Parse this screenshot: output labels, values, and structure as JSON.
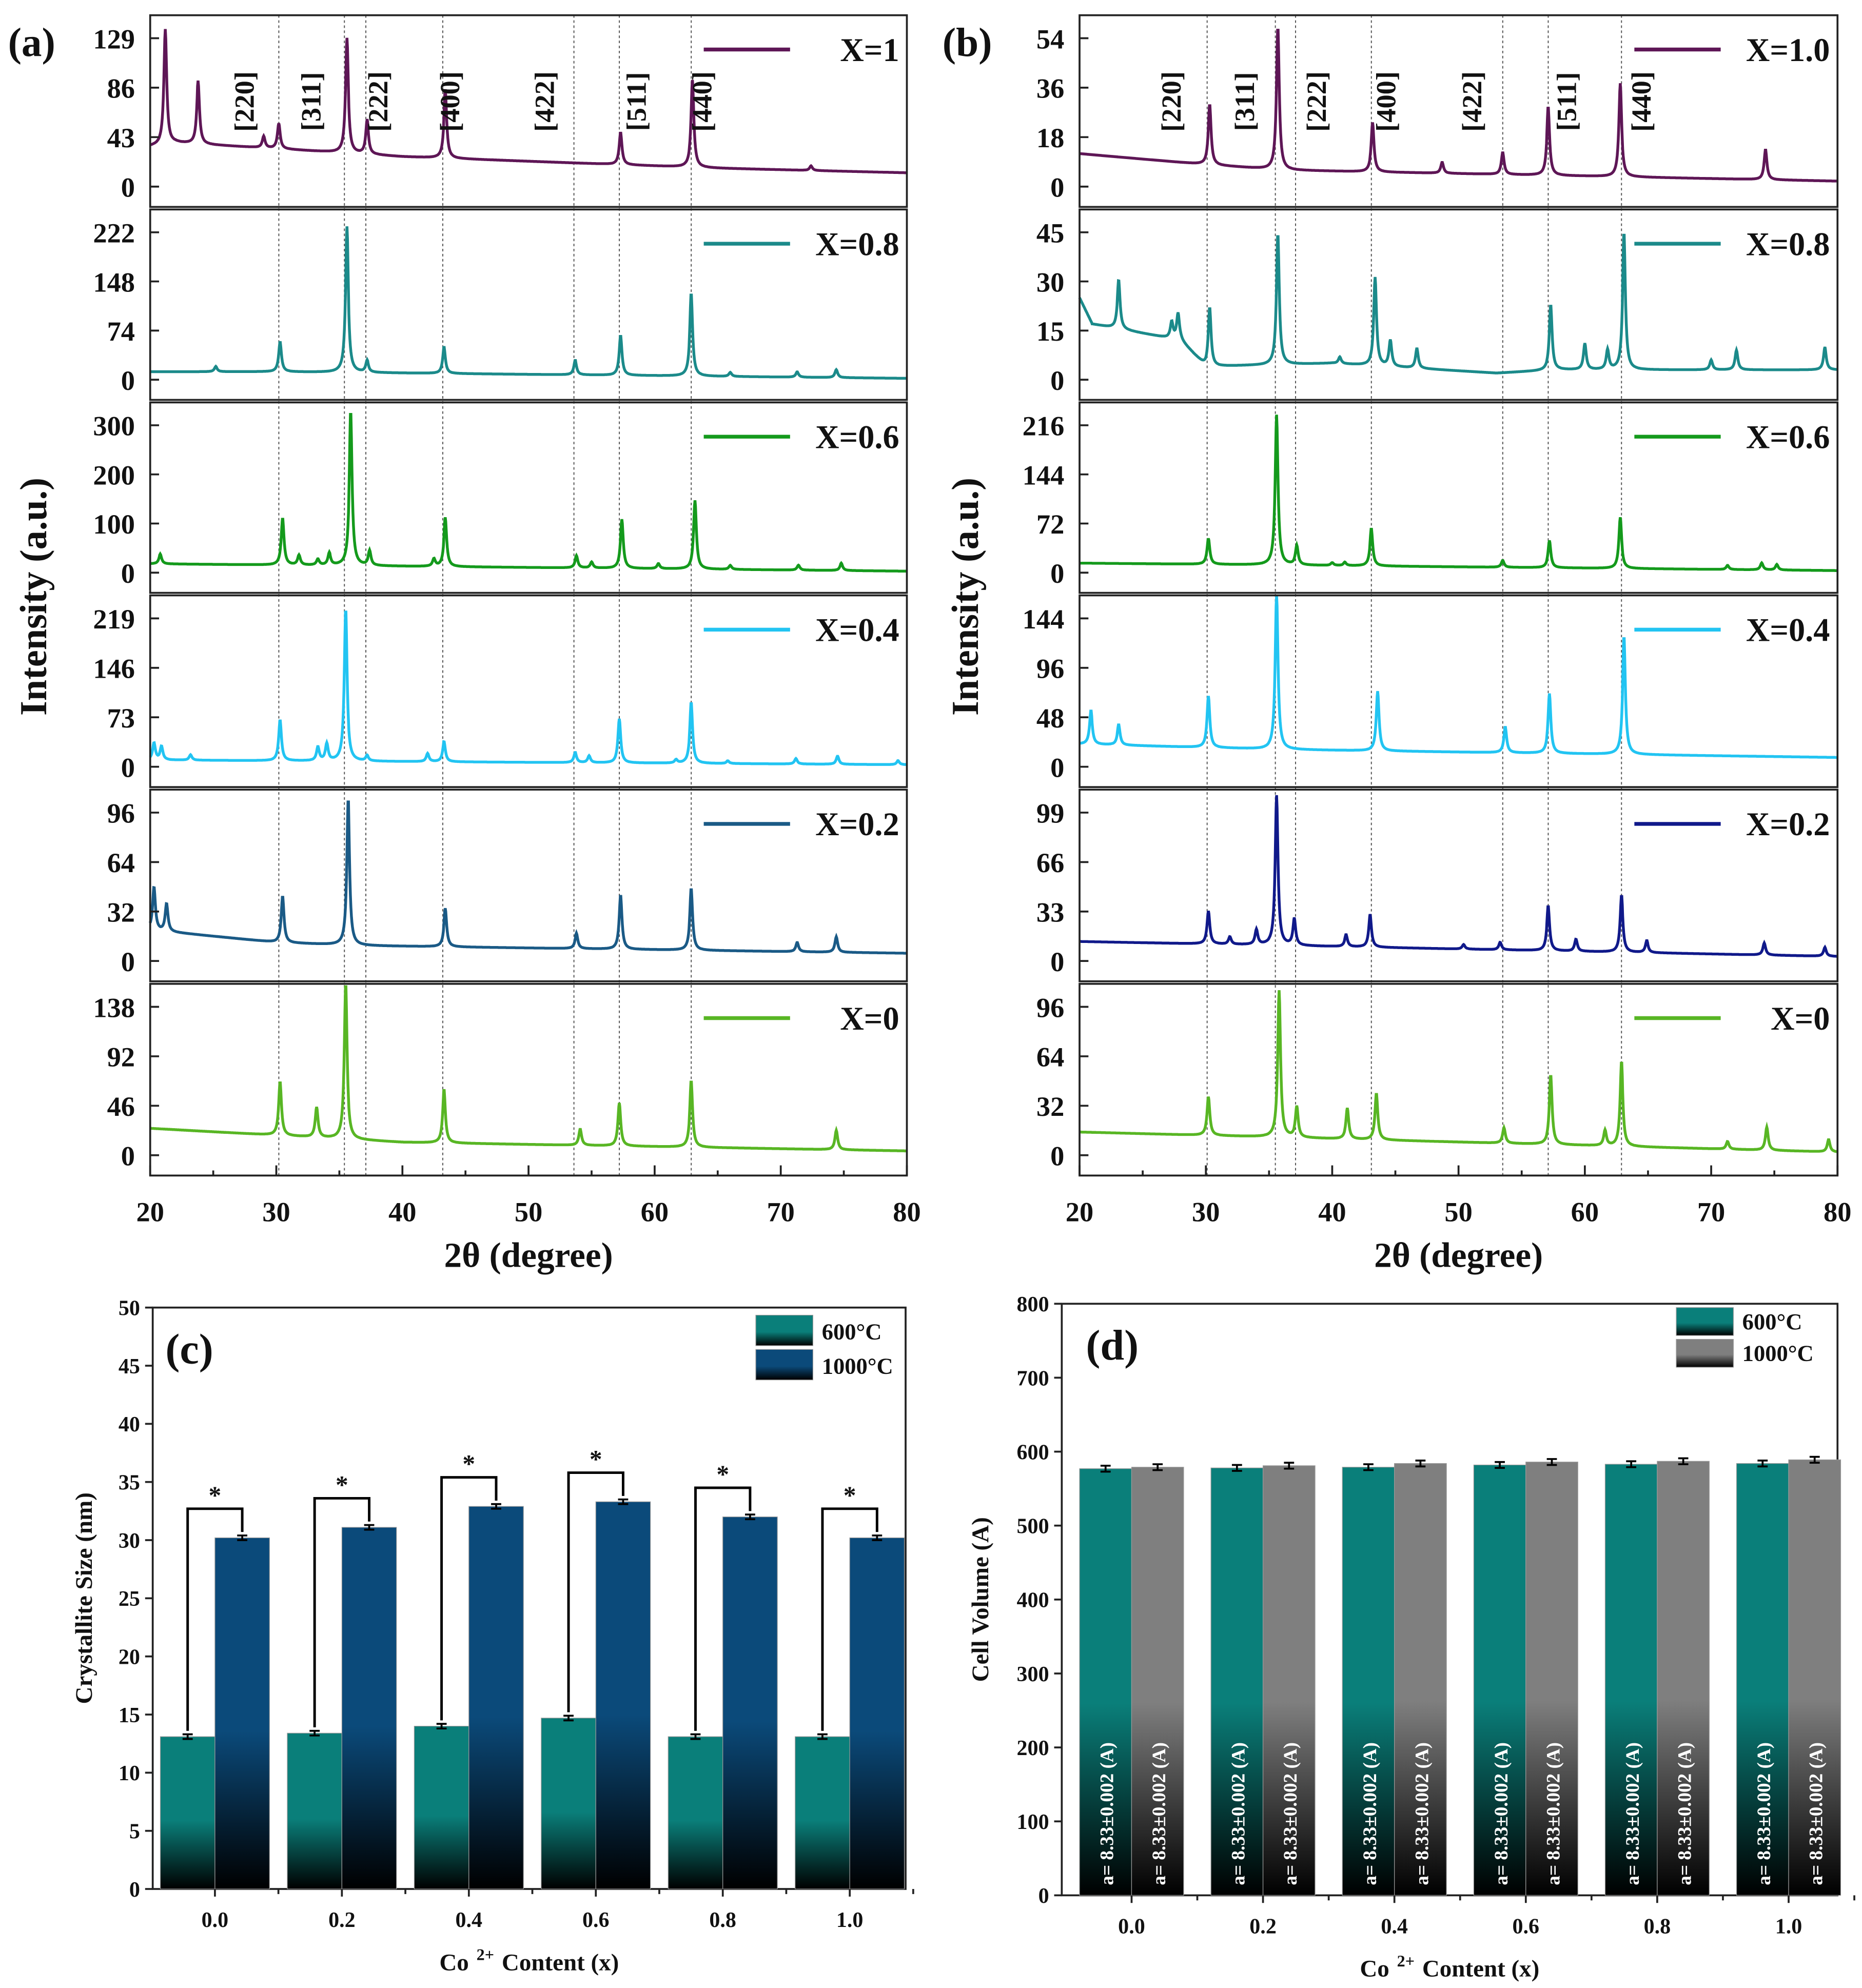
{
  "chart_data": [
    {
      "panel": "(a)",
      "type": "line",
      "xlabel": "2θ (degree)",
      "ylabel": "Intensity (a.u.)",
      "xlim": [
        20,
        80
      ],
      "xticks": [
        "20",
        "30",
        "40",
        "50",
        "60",
        "70",
        "80"
      ],
      "reference_lines": [
        30.2,
        35.4,
        37.1,
        43.2,
        53.6,
        57.2,
        62.9
      ],
      "miller_labels": [
        {
          "text": "[220]",
          "at": 28.2
        },
        {
          "text": "[311]",
          "at": 33.5
        },
        {
          "text": "[222]",
          "at": 38.8
        },
        {
          "text": "[400]",
          "at": 44.5
        },
        {
          "text": "[422]",
          "at": 52.0
        },
        {
          "text": "[511]",
          "at": 59.3
        },
        {
          "text": "[440]",
          "at": 64.5
        }
      ],
      "series": [
        {
          "name": "X=1",
          "color": "#5e1656",
          "yticks": [
            "0",
            "43",
            "86",
            "129"
          ],
          "ymax_tick": 129,
          "baseline": [
            [
              20,
              35
            ],
            [
              22,
              38
            ],
            [
              30,
              33
            ],
            [
              40,
              26
            ],
            [
              55,
              20
            ],
            [
              65,
              16
            ],
            [
              80,
              12
            ]
          ],
          "peaks": [
            [
              21.2,
              100
            ],
            [
              23.8,
              55
            ],
            [
              29,
              10
            ],
            [
              30.2,
              22
            ],
            [
              35.6,
              100
            ],
            [
              37.2,
              30
            ],
            [
              43.4,
              60
            ],
            [
              57.3,
              28
            ],
            [
              63,
              76
            ],
            [
              72.4,
              4
            ]
          ]
        },
        {
          "name": "X=0.8",
          "color": "#1b8a8a",
          "yticks": [
            "0",
            "74",
            "148",
            "222"
          ],
          "ymax_tick": 222,
          "baseline": [
            [
              20,
              12
            ],
            [
              30,
              12
            ],
            [
              80,
              2
            ]
          ],
          "peaks": [
            [
              25.2,
              8
            ],
            [
              30.3,
              45
            ],
            [
              35.6,
              220
            ],
            [
              37.2,
              18
            ],
            [
              43.3,
              40
            ],
            [
              53.7,
              22
            ],
            [
              57.3,
              60
            ],
            [
              62.9,
              125
            ],
            [
              66,
              6
            ],
            [
              71.3,
              8
            ],
            [
              74.4,
              12
            ]
          ]
        },
        {
          "name": "X=0.6",
          "color": "#149a1c",
          "yticks": [
            "0",
            "100",
            "200",
            "300"
          ],
          "ymax_tick": 300,
          "baseline": [
            [
              20,
              18
            ],
            [
              80,
              3
            ]
          ],
          "peaks": [
            [
              20.8,
              20
            ],
            [
              30.5,
              95
            ],
            [
              31.8,
              20
            ],
            [
              33.3,
              12
            ],
            [
              34.2,
              25
            ],
            [
              35.9,
              315
            ],
            [
              37.4,
              30
            ],
            [
              42.5,
              15
            ],
            [
              43.4,
              100
            ],
            [
              53.8,
              25
            ],
            [
              55,
              12
            ],
            [
              57.4,
              100
            ],
            [
              60.3,
              10
            ],
            [
              63.2,
              140
            ],
            [
              66,
              8
            ],
            [
              71.4,
              10
            ],
            [
              74.8,
              15
            ]
          ]
        },
        {
          "name": "X=0.4",
          "color": "#22c4f2",
          "yticks": [
            "0",
            "73",
            "146",
            "219"
          ],
          "ymax_tick": 219,
          "baseline": [
            [
              20,
              10
            ],
            [
              80,
              3
            ]
          ],
          "peaks": [
            [
              20.3,
              25
            ],
            [
              20.9,
              20
            ],
            [
              23.2,
              8
            ],
            [
              30.3,
              60
            ],
            [
              33.3,
              20
            ],
            [
              34,
              25
            ],
            [
              35.5,
              225
            ],
            [
              37.2,
              8
            ],
            [
              42,
              12
            ],
            [
              43.3,
              30
            ],
            [
              53.7,
              15
            ],
            [
              54.8,
              10
            ],
            [
              57.2,
              65
            ],
            [
              61.7,
              5
            ],
            [
              62.9,
              90
            ],
            [
              65.8,
              4
            ],
            [
              71.2,
              8
            ],
            [
              74.5,
              12
            ],
            [
              79.3,
              6
            ]
          ]
        },
        {
          "name": "X=0.2",
          "color": "#1a5a86",
          "yticks": [
            "0",
            "32",
            "64",
            "96"
          ],
          "ymax_tick": 96,
          "baseline": [
            [
              20,
              20
            ],
            [
              30,
              12
            ],
            [
              36,
              10
            ],
            [
              80,
              5
            ]
          ],
          "peaks": [
            [
              20.3,
              28
            ],
            [
              21.3,
              18
            ],
            [
              30.5,
              30
            ],
            [
              35.7,
              95
            ],
            [
              43.4,
              25
            ],
            [
              53.8,
              10
            ],
            [
              57.3,
              35
            ],
            [
              62.9,
              40
            ],
            [
              71.3,
              6
            ],
            [
              74.4,
              10
            ]
          ]
        },
        {
          "name": "X=0",
          "color": "#58b624",
          "yticks": [
            "0",
            "46",
            "92",
            "138"
          ],
          "ymax_tick": 138,
          "baseline": [
            [
              20,
              25
            ],
            [
              40,
              12
            ],
            [
              80,
              4
            ]
          ],
          "peaks": [
            [
              30.3,
              50
            ],
            [
              33.2,
              28
            ],
            [
              35.5,
              145
            ],
            [
              43.3,
              50
            ],
            [
              54.1,
              15
            ],
            [
              57.2,
              40
            ],
            [
              62.9,
              62
            ],
            [
              74.4,
              18
            ]
          ]
        }
      ]
    },
    {
      "panel": "(b)",
      "type": "line",
      "xlabel": "2θ (degree)",
      "ylabel": "Intensity (a.u.)",
      "xlim": [
        20,
        80
      ],
      "xticks": [
        "20",
        "30",
        "40",
        "50",
        "60",
        "70",
        "80"
      ],
      "reference_lines": [
        30.1,
        35.5,
        37.1,
        43.1,
        53.5,
        57.1,
        62.9
      ],
      "miller_labels": [
        {
          "text": "[220]",
          "at": 28.0
        },
        {
          "text": "[311]",
          "at": 33.8
        },
        {
          "text": "[222]",
          "at": 39.5
        },
        {
          "text": "[400]",
          "at": 45.0
        },
        {
          "text": "[422]",
          "at": 51.8
        },
        {
          "text": "[511]",
          "at": 59.3
        },
        {
          "text": "[440]",
          "at": 65.2
        }
      ],
      "series": [
        {
          "name": "X=1.0",
          "color": "#5e1656",
          "yticks": [
            "0",
            "18",
            "36",
            "54"
          ],
          "ymax_tick": 54,
          "baseline": [
            [
              20,
              12
            ],
            [
              30,
              8
            ],
            [
              36,
              6
            ],
            [
              80,
              2
            ]
          ],
          "peaks": [
            [
              30.3,
              22
            ],
            [
              35.7,
              52
            ],
            [
              43.2,
              18
            ],
            [
              48.7,
              4
            ],
            [
              53.5,
              8
            ],
            [
              57.1,
              25
            ],
            [
              62.8,
              34
            ],
            [
              74.3,
              11
            ]
          ]
        },
        {
          "name": "X=0.8",
          "color": "#1b8a8a",
          "yticks": [
            "0",
            "15",
            "30",
            "45"
          ],
          "ymax_tick": 45,
          "baseline": [
            [
              20,
              25
            ],
            [
              21,
              17
            ],
            [
              28,
              12
            ],
            [
              30,
              4
            ],
            [
              40,
              5
            ],
            [
              53,
              2
            ],
            [
              58,
              3
            ],
            [
              80,
              3
            ]
          ],
          "peaks": [
            [
              23.1,
              15
            ],
            [
              27.3,
              5
            ],
            [
              27.8,
              8
            ],
            [
              30.3,
              18
            ],
            [
              35.7,
              40
            ],
            [
              40.6,
              2
            ],
            [
              43.4,
              27
            ],
            [
              44.6,
              8
            ],
            [
              46.7,
              6
            ],
            [
              57.3,
              20
            ],
            [
              60,
              8
            ],
            [
              61.8,
              6
            ],
            [
              63.1,
              42
            ],
            [
              70,
              3
            ],
            [
              72,
              6
            ],
            [
              79,
              7
            ]
          ]
        },
        {
          "name": "X=0.6",
          "color": "#149a1c",
          "yticks": [
            "0",
            "72",
            "144",
            "216"
          ],
          "ymax_tick": 216,
          "baseline": [
            [
              20,
              14
            ],
            [
              80,
              3
            ]
          ],
          "peaks": [
            [
              30.2,
              38
            ],
            [
              35.6,
              220
            ],
            [
              37.2,
              28
            ],
            [
              40,
              4
            ],
            [
              41,
              5
            ],
            [
              43.1,
              55
            ],
            [
              53.5,
              10
            ],
            [
              57.2,
              40
            ],
            [
              62.8,
              75
            ],
            [
              71.3,
              6
            ],
            [
              74,
              10
            ],
            [
              75.2,
              8
            ]
          ]
        },
        {
          "name": "X=0.4",
          "color": "#22c4f2",
          "yticks": [
            "0",
            "48",
            "96",
            "144"
          ],
          "ymax_tick": 144,
          "baseline": [
            [
              20,
              22
            ],
            [
              35,
              17
            ],
            [
              40,
              16
            ],
            [
              80,
              9
            ]
          ],
          "peaks": [
            [
              20.9,
              33
            ],
            [
              23.1,
              20
            ],
            [
              30.2,
              50
            ],
            [
              35.6,
              152
            ],
            [
              43.6,
              58
            ],
            [
              53.7,
              25
            ],
            [
              57.2,
              58
            ],
            [
              63.1,
              115
            ]
          ]
        },
        {
          "name": "X=0.2",
          "color": "#10198a",
          "yticks": [
            "0",
            "33",
            "66",
            "99"
          ],
          "ymax_tick": 99,
          "baseline": [
            [
              20,
              13
            ],
            [
              80,
              3
            ]
          ],
          "peaks": [
            [
              30.2,
              22
            ],
            [
              31.9,
              5
            ],
            [
              34,
              10
            ],
            [
              35.6,
              100
            ],
            [
              37,
              18
            ],
            [
              41.1,
              8
            ],
            [
              43,
              22
            ],
            [
              50.4,
              3
            ],
            [
              53.3,
              5
            ],
            [
              57.1,
              30
            ],
            [
              59.3,
              8
            ],
            [
              62.9,
              38
            ],
            [
              64.9,
              8
            ],
            [
              74.2,
              8
            ],
            [
              79,
              6
            ]
          ]
        },
        {
          "name": "X=0",
          "color": "#58b624",
          "yticks": [
            "0",
            "32",
            "64",
            "96"
          ],
          "ymax_tick": 96,
          "baseline": [
            [
              20,
              15
            ],
            [
              80,
              2
            ]
          ],
          "peaks": [
            [
              30.2,
              25
            ],
            [
              35.8,
              95
            ],
            [
              37.2,
              20
            ],
            [
              41.2,
              20
            ],
            [
              43.5,
              30
            ],
            [
              53.6,
              10
            ],
            [
              57.3,
              45
            ],
            [
              61.6,
              10
            ],
            [
              62.9,
              55
            ],
            [
              71.3,
              5
            ],
            [
              74.4,
              15
            ],
            [
              79.3,
              8
            ]
          ]
        }
      ]
    },
    {
      "panel": "(c)",
      "type": "bar",
      "xlabel": "Co 2+ Content (x)",
      "xlabel_main": "Co",
      "xlabel_sup": "2+",
      "xlabel_rest": "Content (x)",
      "ylabel": "Crystallite Size (nm)",
      "ylim": [
        0,
        50
      ],
      "yticks": [
        "0",
        "5",
        "10",
        "15",
        "20",
        "25",
        "30",
        "35",
        "40",
        "45",
        "50"
      ],
      "categories": [
        "0.0",
        "0.2",
        "0.4",
        "0.6",
        "0.8",
        "1.0"
      ],
      "significance_mark": "*",
      "legend": "top-right",
      "series": [
        {
          "name": "600°C",
          "color": "#0a7f7a",
          "values": [
            13.1,
            13.4,
            14.0,
            14.7,
            13.1,
            13.1
          ],
          "error": 0.2
        },
        {
          "name": "1000°C",
          "color": "#0b4a7a",
          "values": [
            30.2,
            31.1,
            32.9,
            33.3,
            32.0,
            30.2
          ],
          "error": 0.2
        }
      ]
    },
    {
      "panel": "(d)",
      "type": "bar",
      "xlabel": "Co 2+ Content (x)",
      "xlabel_main": "Co",
      "xlabel_sup": "2+",
      "xlabel_rest": "Content (x)",
      "ylabel": "Cell Volume (A)",
      "ylim": [
        0,
        800
      ],
      "yticks": [
        "0",
        "100",
        "200",
        "300",
        "400",
        "500",
        "600",
        "700",
        "800"
      ],
      "categories": [
        "0.0",
        "0.2",
        "0.4",
        "0.6",
        "0.8",
        "1.0"
      ],
      "legend": "top-right",
      "bar_annotation": "a= 8.33±0.002 (A)",
      "series": [
        {
          "name": "600°C",
          "color": "#0a7f7a",
          "values": [
            577,
            578,
            579,
            582,
            583,
            584
          ],
          "error": 4
        },
        {
          "name": "1000°C",
          "color": "#7f7f7f",
          "values": [
            579,
            581,
            584,
            586,
            587,
            589
          ],
          "error": 4
        }
      ]
    }
  ]
}
